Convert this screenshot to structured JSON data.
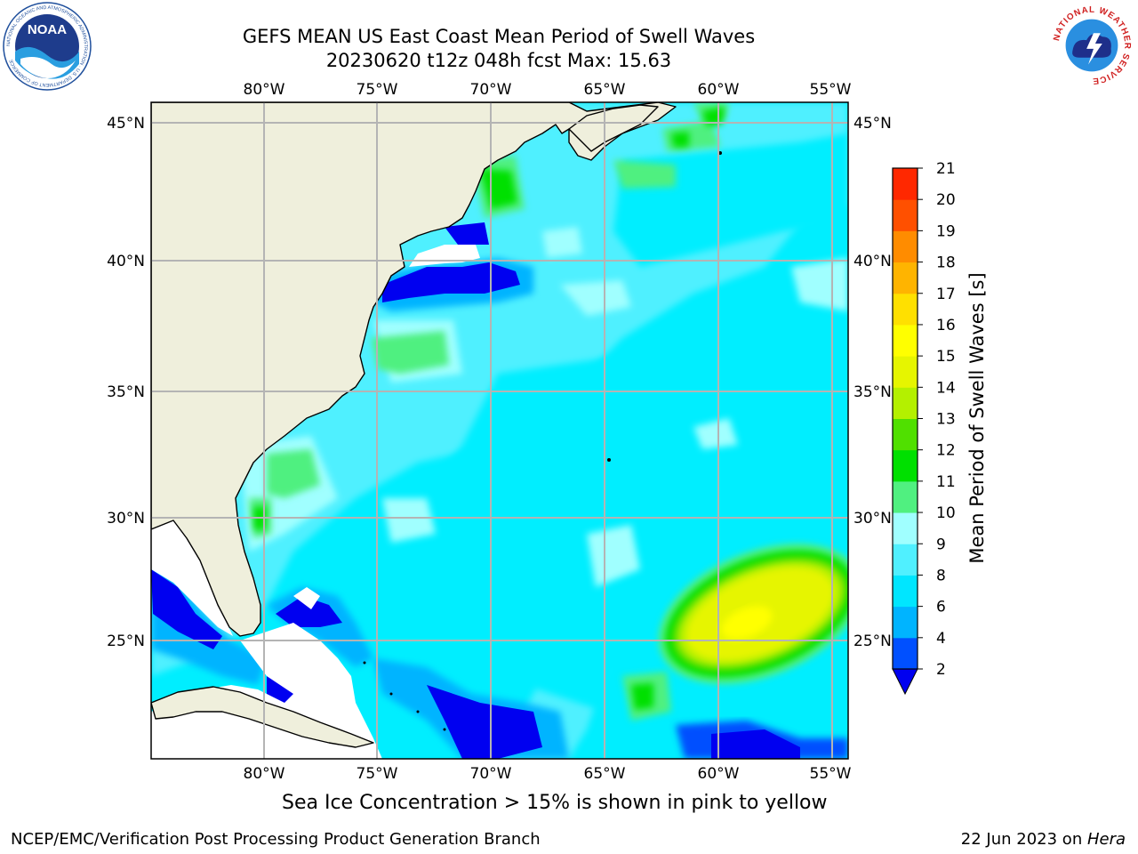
{
  "header": {
    "title_line1": "GEFS MEAN US East Coast Mean Period of Swell Waves",
    "title_line2": "20230620 t12z 048h fcst   Max: 15.63"
  },
  "logos": {
    "left": {
      "text": "NOAA",
      "ring_text": "NATIONAL OCEANIC AND ATMOSPHERIC ADMINISTRATION · U.S. DEPARTMENT OF COMMERCE"
    },
    "right": {
      "ring_text": "NATIONAL WEATHER SERVICE"
    }
  },
  "map": {
    "lon_labels": [
      "80°W",
      "75°W",
      "70°W",
      "65°W",
      "60°W",
      "55°W"
    ],
    "lat_labels": [
      "45°N",
      "40°N",
      "35°N",
      "30°N",
      "25°N"
    ],
    "lon_range": [
      -85,
      -54.5
    ],
    "lat_range": [
      20.5,
      46
    ]
  },
  "colorbar": {
    "label": "Mean Period of Swell Waves [s]",
    "ticks": [
      "2",
      "4",
      "6",
      "8",
      "9",
      "10",
      "11",
      "12",
      "13",
      "14",
      "15",
      "16",
      "17",
      "18",
      "19",
      "20",
      "21"
    ],
    "colors": [
      "#0050ff",
      "#00b4ff",
      "#00e6ff",
      "#50f0ff",
      "#a0ffff",
      "#50f080",
      "#00e000",
      "#50e000",
      "#b4f000",
      "#e6f500",
      "#ffff00",
      "#ffe000",
      "#ffb400",
      "#ff8c00",
      "#ff5000",
      "#ff2800",
      "#ff0000"
    ],
    "under_color": "#0000f0"
  },
  "subtitle": "Sea Ice Concentration > 15% is shown in pink to yellow",
  "footer": {
    "left": "NCEP/EMC/Verification Post Processing Product Generation Branch",
    "right_date": "22 Jun 2023 on ",
    "right_host": "Hera"
  },
  "colors": {
    "land": "#efefdc",
    "ocean_base": "#00eeff",
    "grid": "#b4b4b4"
  }
}
